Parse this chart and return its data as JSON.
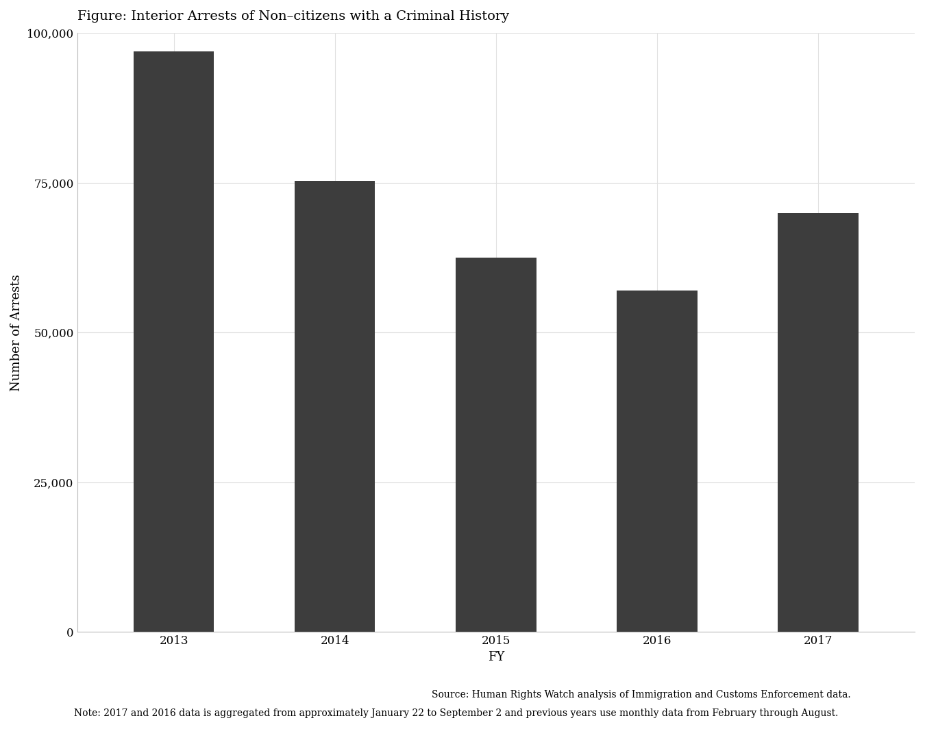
{
  "title": "Figure: Interior Arrests of Non–citizens with a Criminal History",
  "categories": [
    "2013",
    "2014",
    "2015",
    "2016",
    "2017"
  ],
  "values": [
    97000,
    75300,
    62500,
    57000,
    70000
  ],
  "bar_color": "#3d3d3d",
  "xlabel": "FY",
  "ylabel": "Number of Arrests",
  "ylim": [
    0,
    100000
  ],
  "yticks": [
    0,
    25000,
    50000,
    75000,
    100000
  ],
  "background_color": "#ffffff",
  "panel_background": "#ffffff",
  "grid_color": "#e0e0e0",
  "source_text": "Source: Human Rights Watch analysis of Immigration and Customs Enforcement data.",
  "note_text": "Note: 2017 and 2016 data is aggregated from approximately January 22 to September 2 and previous years use monthly data from February through August.",
  "title_fontsize": 14,
  "axis_label_fontsize": 13,
  "tick_fontsize": 12,
  "footnote_fontsize": 10,
  "bar_width": 0.5
}
